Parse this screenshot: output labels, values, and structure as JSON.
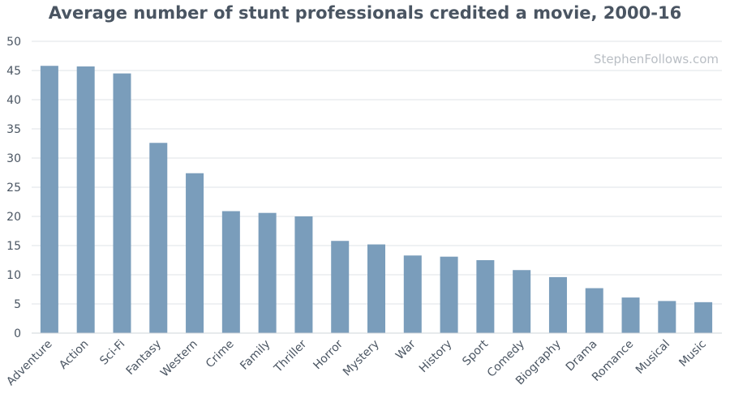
{
  "chart_data": {
    "type": "bar",
    "title": "Average number of stunt professionals credited a movie, 2000-16",
    "watermark": "StephenFollows.com",
    "categories": [
      "Adventure",
      "Action",
      "Sci-Fi",
      "Fantasy",
      "Western",
      "Crime",
      "Family",
      "Thriller",
      "Horror",
      "Mystery",
      "War",
      "History",
      "Sport",
      "Comedy",
      "Biography",
      "Drama",
      "Romance",
      "Musical",
      "Music"
    ],
    "values": [
      45.8,
      45.7,
      44.5,
      32.6,
      27.4,
      20.9,
      20.6,
      20.0,
      15.8,
      15.2,
      13.3,
      13.1,
      12.5,
      10.8,
      9.6,
      7.7,
      6.1,
      5.5,
      5.3
    ],
    "yticks": [
      0,
      5,
      10,
      15,
      20,
      25,
      30,
      35,
      40,
      45,
      50
    ],
    "ylim": [
      0,
      50
    ],
    "xlabel": "",
    "ylabel": "",
    "grid": true,
    "bar_color": "#7a9dbb",
    "grid_color": "#dfe3e7",
    "text_color": "#4a5562"
  }
}
